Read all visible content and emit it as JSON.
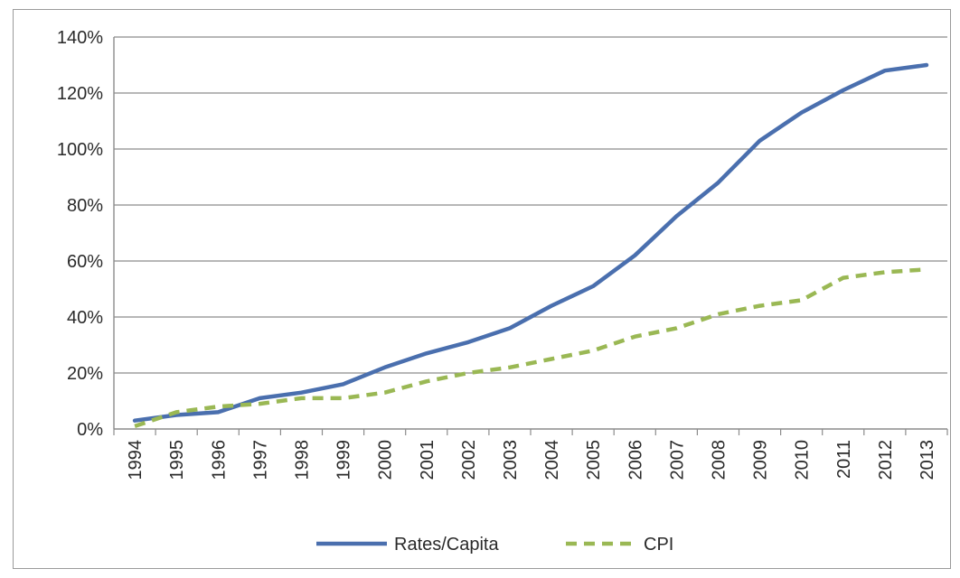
{
  "chart_data": {
    "type": "line",
    "title": "",
    "xlabel": "",
    "ylabel": "",
    "categories": [
      "1994",
      "1995",
      "1996",
      "1997",
      "1998",
      "1999",
      "2000",
      "2001",
      "2002",
      "2003",
      "2004",
      "2005",
      "2006",
      "2007",
      "2008",
      "2009",
      "2010",
      "2011",
      "2012",
      "2013"
    ],
    "ylim": [
      0,
      140
    ],
    "yticks": [
      0,
      20,
      40,
      60,
      80,
      100,
      120,
      140
    ],
    "ytick_labels": [
      "0%",
      "20%",
      "40%",
      "60%",
      "80%",
      "100%",
      "120%",
      "140%"
    ],
    "grid": true,
    "legend_position": "bottom",
    "series": [
      {
        "name": "Rates/Capita",
        "color": "#4a6fae",
        "style": "solid",
        "values": [
          3,
          5,
          6,
          11,
          13,
          16,
          22,
          27,
          31,
          36,
          44,
          51,
          62,
          76,
          88,
          103,
          113,
          121,
          128,
          130
        ]
      },
      {
        "name": "CPI",
        "color": "#9ab854",
        "style": "dashed",
        "values": [
          1,
          6,
          8,
          9,
          11,
          11,
          13,
          17,
          20,
          22,
          25,
          28,
          33,
          36,
          41,
          44,
          46,
          54,
          56,
          57
        ]
      }
    ]
  }
}
